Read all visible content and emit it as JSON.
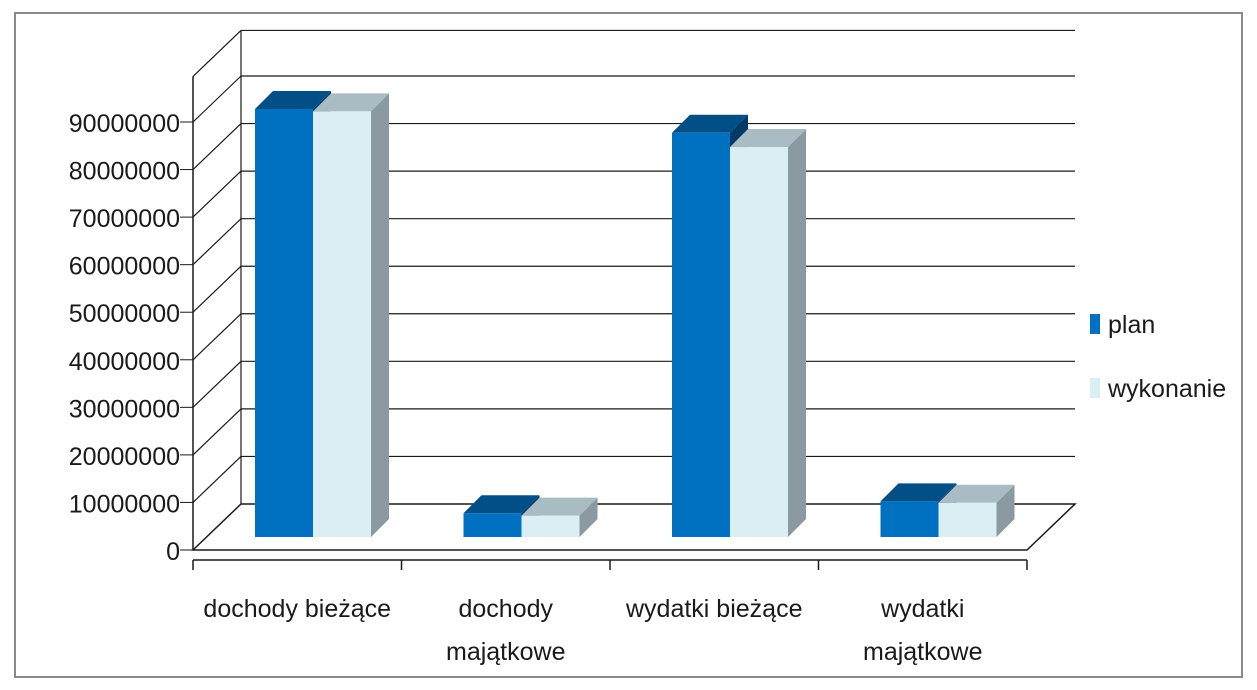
{
  "chart_data": {
    "type": "bar",
    "style": "3d-clustered-column",
    "title": "",
    "xlabel": "",
    "ylabel": "",
    "categories": [
      [
        "dochody bieżące"
      ],
      [
        "dochody",
        "majątkowe"
      ],
      [
        "wydatki bieżące"
      ],
      [
        "wydatki",
        "majątkowe"
      ]
    ],
    "series": [
      {
        "name": "plan",
        "values": [
          90000000,
          5000000,
          85000000,
          7500000
        ],
        "color": "#0070c0",
        "top_color": "#024f88",
        "side_color": "#003a66"
      },
      {
        "name": "wykonanie",
        "values": [
          89500000,
          4500000,
          82000000,
          7200000
        ],
        "color": "#dbeef4",
        "top_color": "#a9bcc4",
        "side_color": "#8a9aa0"
      }
    ],
    "yticks": [
      "0",
      "10000000",
      "20000000",
      "30000000",
      "40000000",
      "50000000",
      "60000000",
      "70000000",
      "80000000",
      "90000000"
    ],
    "ylim": [
      0,
      90000000
    ],
    "grid": true,
    "legend_position": "right"
  }
}
